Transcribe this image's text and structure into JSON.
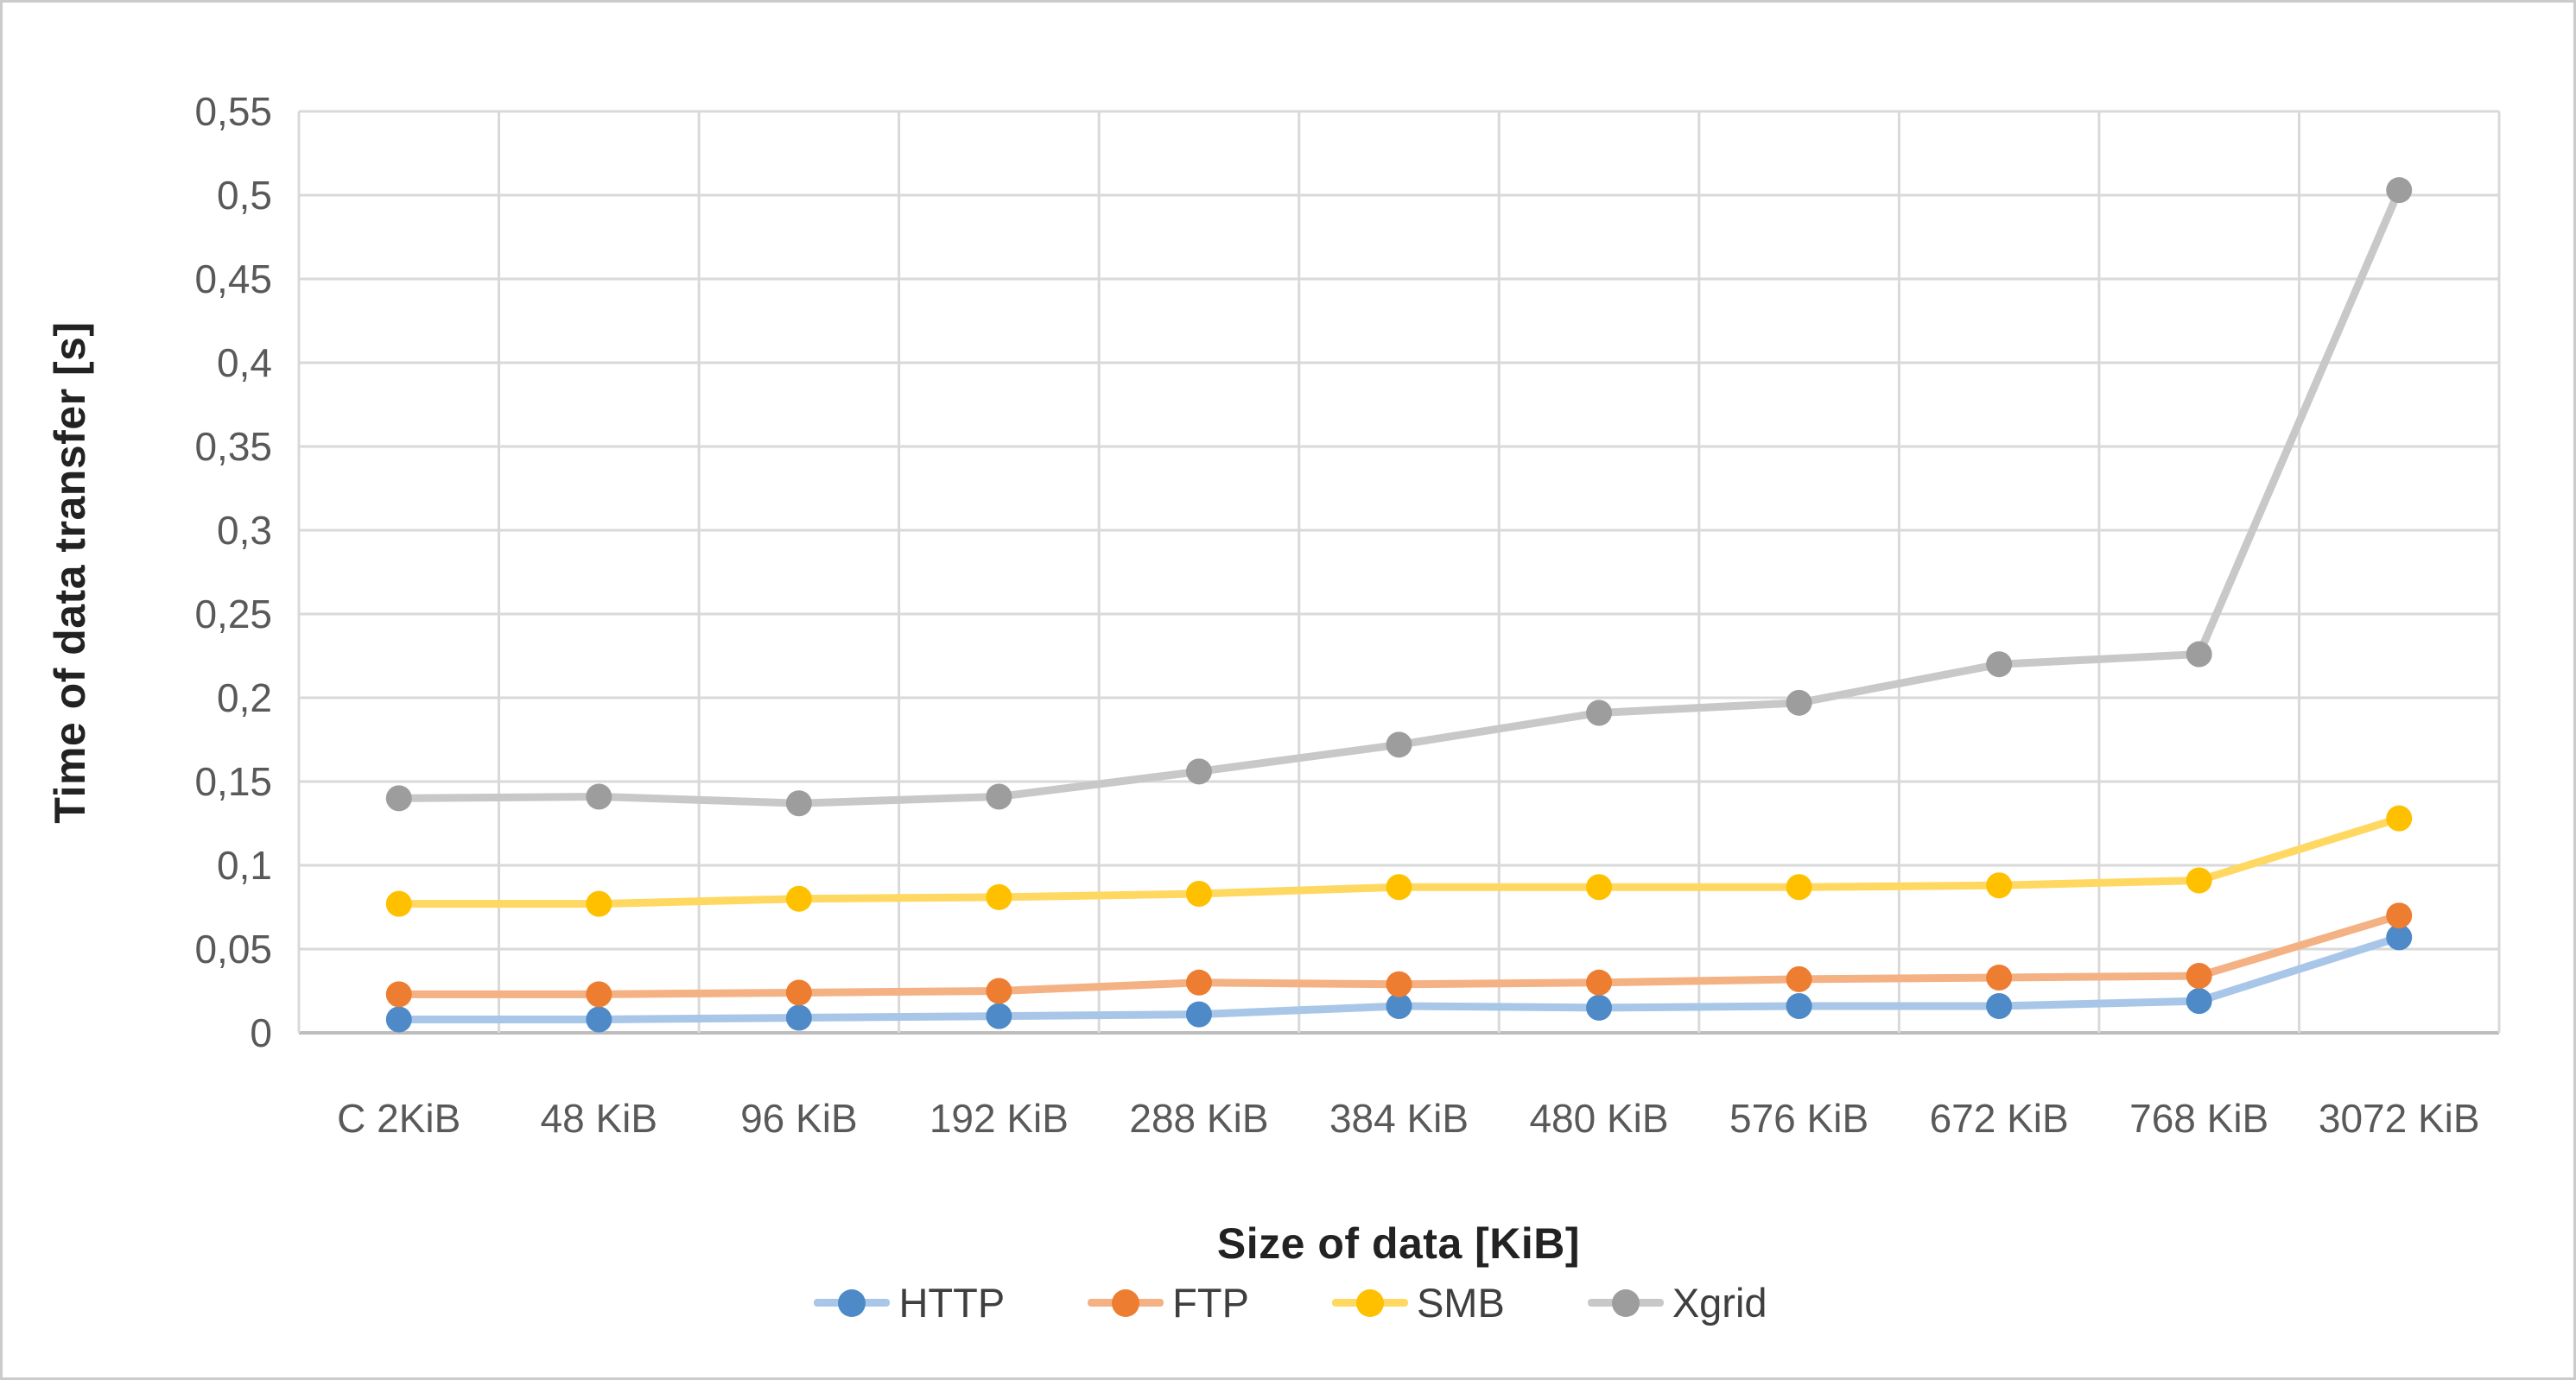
{
  "chart_data": {
    "type": "line",
    "title": "",
    "categories": [
      "C 2KiB",
      "48 KiB",
      "96 KiB",
      "192 KiB",
      "288 KiB",
      "384 KiB",
      "480 KiB",
      "576 KiB",
      "672 KiB",
      "768 KiB",
      "3072 KiB"
    ],
    "series": [
      {
        "name": "HTTP",
        "marker_color": "#4E8AC8",
        "line_color": "#A7C6E8",
        "values": [
          0.008,
          0.008,
          0.009,
          0.01,
          0.011,
          0.016,
          0.015,
          0.016,
          0.016,
          0.019,
          0.057
        ]
      },
      {
        "name": "FTP",
        "marker_color": "#ED7D31",
        "line_color": "#F4B183",
        "values": [
          0.023,
          0.023,
          0.024,
          0.025,
          0.03,
          0.029,
          0.03,
          0.032,
          0.033,
          0.034,
          0.07
        ]
      },
      {
        "name": "SMB",
        "marker_color": "#FFC000",
        "line_color": "#FFD861",
        "values": [
          0.077,
          0.077,
          0.08,
          0.081,
          0.083,
          0.087,
          0.087,
          0.087,
          0.088,
          0.091,
          0.128
        ]
      },
      {
        "name": "Xgrid",
        "marker_color": "#9D9D9D",
        "line_color": "#C8C8C8",
        "values": [
          0.14,
          0.141,
          0.137,
          0.141,
          0.156,
          0.172,
          0.191,
          0.197,
          0.22,
          0.226,
          0.503
        ]
      }
    ],
    "xlabel": "Size of data [KiB]",
    "ylabel": "Time of data transfer [s]",
    "ylim": [
      0,
      0.55
    ],
    "y_tick_step": 0.05,
    "y_tick_labels": [
      "0",
      "0,05",
      "0,1",
      "0,15",
      "0,2",
      "0,25",
      "0,3",
      "0,35",
      "0,4",
      "0,45",
      "0,5",
      "0,55"
    ],
    "grid": true,
    "legend_position": "bottom"
  },
  "palette": {
    "gridline": "#D9D9D9",
    "axis_line": "#BDBDBD",
    "tick_label": "#595959",
    "axis_title": "#222222",
    "legend_text": "#3f3f3f",
    "chart_border": "#CBCBCB",
    "background": "#FFFFFF"
  }
}
